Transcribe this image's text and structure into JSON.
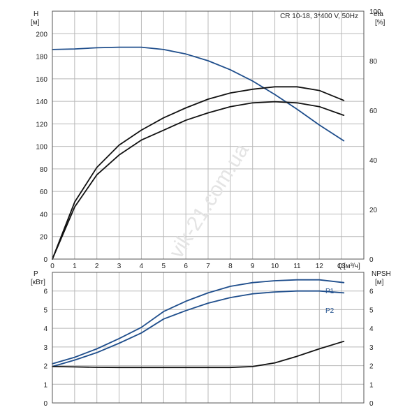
{
  "chart_data": [
    {
      "type": "line",
      "title": "CR 10-18, 3*400 V, 50Hz",
      "left_axis": {
        "label": "H",
        "unit": "[м]",
        "ylim": [
          0,
          220
        ],
        "ticks": [
          0,
          20,
          40,
          60,
          80,
          100,
          120,
          140,
          160,
          180,
          200
        ]
      },
      "right_axis": {
        "label": "eta",
        "unit": "[%]",
        "ylim": [
          0,
          100
        ],
        "ticks": [
          0,
          20,
          40,
          60,
          80,
          100
        ]
      },
      "x_axis": {
        "label": "Q",
        "unit": "[м³/ч]",
        "xlim": [
          0,
          14
        ],
        "ticks": [
          0,
          1,
          2,
          3,
          4,
          5,
          6,
          7,
          8,
          9,
          10,
          11,
          12,
          13
        ]
      },
      "grid": true,
      "series": [
        {
          "axis": "left",
          "color": "#1f4e8c",
          "x": [
            0,
            1,
            2,
            3,
            4,
            5,
            6,
            7,
            8,
            9,
            10,
            11,
            12,
            13.1
          ],
          "values": [
            186,
            186.5,
            187.5,
            188,
            188,
            186,
            182,
            176,
            168,
            158,
            146,
            133,
            119,
            105
          ]
        },
        {
          "axis": "right",
          "color": "#111111",
          "x": [
            0,
            1,
            2,
            3,
            4,
            5,
            6,
            7,
            8,
            9,
            10,
            11,
            12,
            13.1
          ],
          "values": [
            0,
            23,
            37,
            46,
            52,
            57,
            61,
            64.5,
            67,
            68.5,
            69.5,
            69.5,
            68,
            64
          ]
        },
        {
          "axis": "right",
          "color": "#111111",
          "x": [
            0,
            1,
            2,
            3,
            4,
            5,
            6,
            7,
            8,
            9,
            10,
            11,
            12,
            13.1
          ],
          "values": [
            0,
            21,
            34,
            42,
            48,
            52,
            56,
            59,
            61.5,
            63,
            63.5,
            63,
            61.5,
            58
          ]
        }
      ]
    },
    {
      "type": "line",
      "left_axis": {
        "label": "P",
        "unit": "[кВт]",
        "ylim": [
          0,
          7
        ],
        "ticks": [
          0,
          1,
          2,
          3,
          4,
          5,
          6
        ]
      },
      "right_axis": {
        "label": "NPSH",
        "unit": "[м]",
        "ylim": [
          0,
          7
        ],
        "ticks": [
          0,
          1,
          2,
          3,
          4,
          5,
          6
        ]
      },
      "x_axis": {
        "xlim": [
          0,
          14
        ]
      },
      "grid": true,
      "series": [
        {
          "name": "P1",
          "axis": "left",
          "color": "#1f4e8c",
          "x": [
            0,
            1,
            2,
            3,
            4,
            5,
            6,
            7,
            8,
            9,
            10,
            11,
            12,
            13.1
          ],
          "values": [
            2.1,
            2.45,
            2.9,
            3.45,
            4.05,
            4.9,
            5.45,
            5.9,
            6.25,
            6.45,
            6.55,
            6.6,
            6.6,
            6.45
          ]
        },
        {
          "name": "P2",
          "axis": "left",
          "color": "#1f4e8c",
          "x": [
            0,
            1,
            2,
            3,
            4,
            5,
            6,
            7,
            8,
            9,
            10,
            11,
            12,
            13.1
          ],
          "values": [
            1.95,
            2.3,
            2.7,
            3.2,
            3.75,
            4.5,
            4.95,
            5.35,
            5.65,
            5.85,
            5.95,
            6.0,
            6.0,
            5.9
          ]
        },
        {
          "name": "",
          "axis": "right",
          "color": "#111111",
          "x": [
            0,
            1,
            2,
            3,
            4,
            5,
            6,
            7,
            8,
            9,
            10,
            11,
            12,
            13.1
          ],
          "values": [
            1.95,
            1.93,
            1.91,
            1.9,
            1.9,
            1.9,
            1.9,
            1.9,
            1.9,
            1.95,
            2.15,
            2.5,
            2.9,
            3.3
          ]
        }
      ]
    }
  ],
  "watermark": "vik-21.com.ua"
}
